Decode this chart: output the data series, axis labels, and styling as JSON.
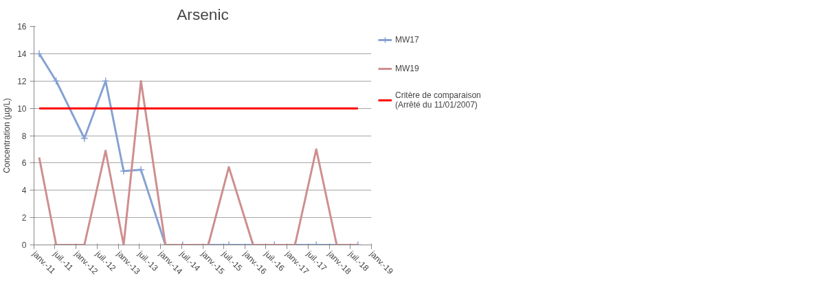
{
  "chart_data": {
    "type": "line",
    "title": "Arsenic",
    "ylabel": "Concentration (µg/L)",
    "ylim": [
      0,
      16
    ],
    "yticks": [
      0,
      2,
      4,
      6,
      8,
      10,
      12,
      14,
      16
    ],
    "xlim": [
      "2011-01-01",
      "2019-01-01"
    ],
    "xticks": [
      {
        "value": "2011-01-01",
        "label": "janv.-11"
      },
      {
        "value": "2011-07-01",
        "label": "juil.-11"
      },
      {
        "value": "2012-01-01",
        "label": "janv.-12"
      },
      {
        "value": "2012-07-01",
        "label": "juil.-12"
      },
      {
        "value": "2013-01-01",
        "label": "janv.-13"
      },
      {
        "value": "2013-07-01",
        "label": "juil.-13"
      },
      {
        "value": "2014-01-01",
        "label": "janv.-14"
      },
      {
        "value": "2014-07-01",
        "label": "juil.-14"
      },
      {
        "value": "2015-01-01",
        "label": "janv.-15"
      },
      {
        "value": "2015-07-01",
        "label": "juil.-15"
      },
      {
        "value": "2016-01-01",
        "label": "janv.-16"
      },
      {
        "value": "2016-07-01",
        "label": "juil.-16"
      },
      {
        "value": "2017-01-01",
        "label": "janv.-17"
      },
      {
        "value": "2017-07-01",
        "label": "juil.-17"
      },
      {
        "value": "2018-01-01",
        "label": "janv.-18"
      },
      {
        "value": "2018-07-01",
        "label": "juil.-18"
      },
      {
        "value": "2019-01-01",
        "label": "janv.-19"
      }
    ],
    "x": [
      "2011-02-15",
      "2011-07-12",
      "2012-03-12",
      "2012-09-12",
      "2013-02-15",
      "2013-07-15",
      "2014-02-12",
      "2014-07-12",
      "2015-02-18",
      "2015-08-15",
      "2016-03-12",
      "2016-09-12",
      "2017-03-10",
      "2017-09-10",
      "2018-03-06",
      "2018-09-06"
    ],
    "grid": "y",
    "legend": "right",
    "series": [
      {
        "name": "MW17",
        "color": "#86a2d2",
        "marker": "cross",
        "values": [
          14,
          12,
          7.8,
          12,
          5.4,
          5.5,
          0,
          0,
          0,
          0,
          0,
          0,
          0,
          0,
          0,
          0
        ]
      },
      {
        "name": "MW19",
        "color": "#cf8e8e",
        "marker": "none",
        "values": [
          6.4,
          0,
          0,
          6.9,
          0,
          12,
          0,
          0,
          0,
          5.7,
          0,
          0,
          0,
          7,
          0,
          0
        ]
      },
      {
        "name": "Critère de comparaison (Arrêté du 11/01/2007)",
        "color": "#ff0000",
        "marker": "none",
        "x": [
          "2011-02-15",
          "2018-09-06"
        ],
        "values": [
          10,
          10
        ]
      }
    ]
  }
}
